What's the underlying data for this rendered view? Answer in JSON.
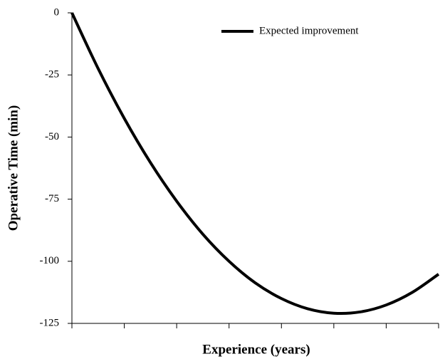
{
  "chart_data": {
    "type": "line",
    "ylabel": "Operative Time (min)",
    "xlabel": "Experience (years)",
    "x": [
      0,
      0.5,
      1,
      1.5,
      2,
      2.5,
      3,
      3.5,
      4,
      4.5,
      5,
      5.5,
      6,
      6.5,
      7
    ],
    "xlim": [
      0,
      7
    ],
    "xticks": [
      0,
      1,
      2,
      3,
      4,
      5,
      6,
      7
    ],
    "ylim": [
      -125,
      0
    ],
    "yticks": [
      0,
      -25,
      -50,
      -75,
      -100,
      -125
    ],
    "series": [
      {
        "name": "Expected improvement",
        "color": "#000000",
        "values": [
          0,
          -22.4,
          -42.5,
          -60.3,
          -75.8,
          -89.1,
          -100.0,
          -108.7,
          -115.0,
          -119.1,
          -120.9,
          -120.4,
          -117.6,
          -112.5,
          -105.2
        ]
      }
    ],
    "legend": "top-right"
  }
}
